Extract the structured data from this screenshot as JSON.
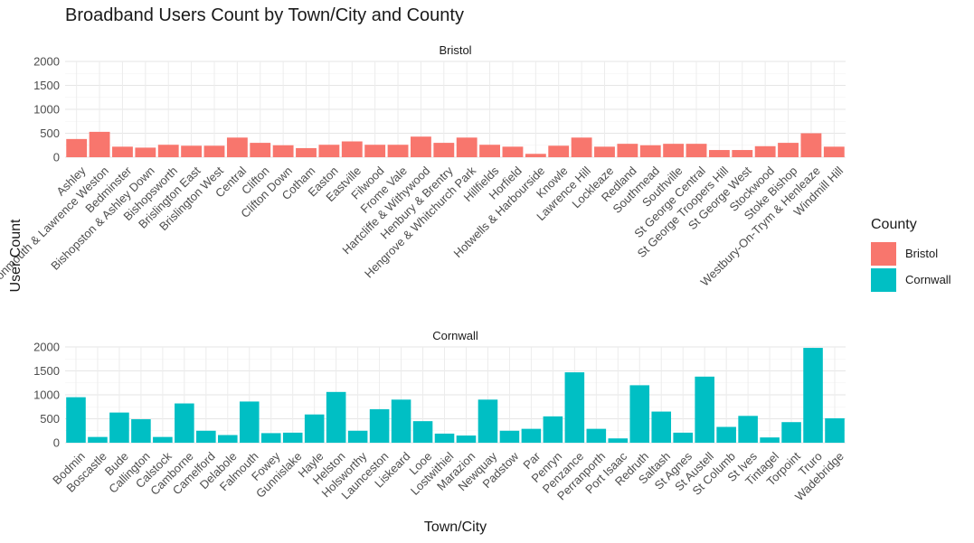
{
  "title": "Broadband Users Count by Town/City and County",
  "legend": {
    "title": "County",
    "items": [
      {
        "label": "Bristol",
        "color": "#F8766D"
      },
      {
        "label": "Cornwall",
        "color": "#00BFC4"
      }
    ]
  },
  "chart_data": {
    "type": "bar",
    "xlabel": "Town/City",
    "ylabel": "User Count",
    "ylim": [
      0,
      2000
    ],
    "yticks": [
      0,
      500,
      1000,
      1500,
      2000
    ],
    "grid": true,
    "legend_position": "right",
    "facets": [
      {
        "name": "Bristol",
        "color": "#F8766D",
        "categories": [
          "Ashley",
          "Avonmouth & Lawrence Weston",
          "Bedminster",
          "Bishopston & Ashley Down",
          "Bishopsworth",
          "Brislington East",
          "Brislington West",
          "Central",
          "Clifton",
          "Clifton Down",
          "Cotham",
          "Easton",
          "Eastville",
          "Filwood",
          "Frome Vale",
          "Hartcliffe & Withywood",
          "Henbury & Brentry",
          "Hengrove & Whitchurch Park",
          "Hillfields",
          "Horfield",
          "Hotwells & Harbourside",
          "Knowle",
          "Lawrence Hill",
          "Lockleaze",
          "Redland",
          "Southmead",
          "Southville",
          "St George Central",
          "St George Troopers Hill",
          "St George West",
          "Stockwood",
          "Stoke Bishop",
          "Westbury-On-Trym & Henleaze",
          "Windmill Hill"
        ],
        "values": [
          380,
          530,
          220,
          200,
          260,
          240,
          240,
          410,
          300,
          250,
          190,
          260,
          330,
          260,
          260,
          430,
          300,
          410,
          260,
          220,
          70,
          240,
          410,
          220,
          280,
          250,
          280,
          280,
          150,
          150,
          230,
          300,
          500,
          220
        ]
      },
      {
        "name": "Cornwall",
        "color": "#00BFC4",
        "categories": [
          "Bodmin",
          "Boscastle",
          "Bude",
          "Callington",
          "Calstock",
          "Camborne",
          "Camelford",
          "Delabole",
          "Falmouth",
          "Fowey",
          "Gunnislake",
          "Hayle",
          "Helston",
          "Holsworthy",
          "Launceston",
          "Liskeard",
          "Looe",
          "Lostwithiel",
          "Marazion",
          "Newquay",
          "Padstow",
          "Par",
          "Penryn",
          "Penzance",
          "Perranporth",
          "Port Isaac",
          "Redruth",
          "Saltash",
          "St Agnes",
          "St Austell",
          "St Columb",
          "St Ives",
          "Tintagel",
          "Torpoint",
          "Truro",
          "Wadebridge"
        ],
        "values": [
          950,
          120,
          630,
          490,
          120,
          820,
          250,
          160,
          860,
          200,
          210,
          590,
          1060,
          250,
          700,
          900,
          450,
          190,
          150,
          900,
          250,
          290,
          550,
          1470,
          290,
          90,
          1200,
          650,
          210,
          1380,
          330,
          560,
          110,
          430,
          1980,
          510
        ]
      }
    ]
  }
}
